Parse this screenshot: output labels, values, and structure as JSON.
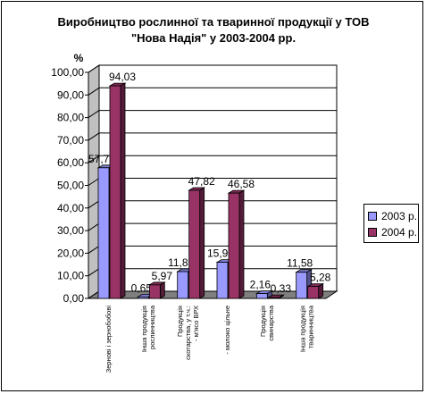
{
  "chart_data": {
    "type": "bar",
    "title_lines": [
      "Виробництво рослинної та тваринної продукції у ТОВ",
      "\"Нова Надія\" у 2003-2004 рр."
    ],
    "ylabel": "%",
    "ylim": [
      0,
      100
    ],
    "yticks": [
      "0,00",
      "10,00",
      "20,00",
      "30,00",
      "40,00",
      "50,00",
      "60,00",
      "70,00",
      "80,00",
      "90,00",
      "100,00"
    ],
    "categories": [
      [
        "Зернові і зернобобові"
      ],
      [
        "Інша продукція",
        "рослинництва"
      ],
      [
        "Продукція",
        "скотарства, у т.ч.:",
        "- м'ясо ВРХ"
      ],
      [
        "- молоко цільне"
      ],
      [
        "Продукція",
        "свинарства"
      ],
      [
        "Інша продукція",
        "тваринництва"
      ]
    ],
    "series": [
      {
        "name": "2003 р.",
        "color": "#9999ff",
        "values": [
          57.79,
          0.65,
          11.85,
          15.97,
          2.16,
          11.58
        ],
        "labels": [
          "57,79",
          "0,65",
          "11,85",
          "15,97",
          "2,16",
          "11,58"
        ]
      },
      {
        "name": "2004 р.",
        "color": "#993366",
        "values": [
          94.03,
          5.97,
          47.82,
          46.58,
          0.33,
          5.28
        ],
        "labels": [
          "94,03",
          "5,97",
          "47,82",
          "46,58",
          "0,33",
          "5,28"
        ]
      }
    ],
    "grid": true,
    "legend_position": "right"
  }
}
